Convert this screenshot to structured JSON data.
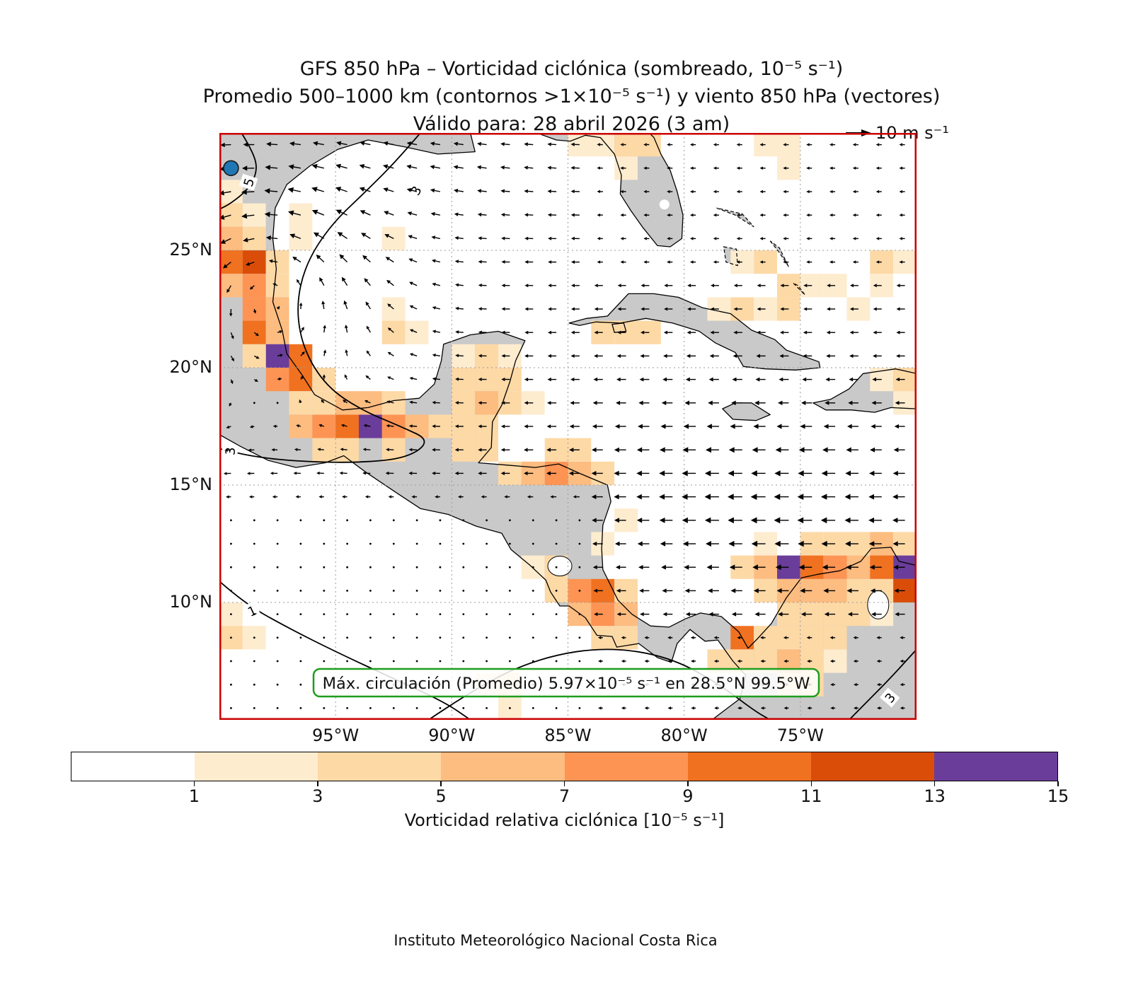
{
  "footer": "Instituto Meteorológico Nacional Costa Rica",
  "chart_data": {
    "type": "heatmap",
    "title": "GFS 850 hPa – Vorticidad ciclónica (sombreado, 10⁻⁵ s⁻¹)",
    "subtitle": "Promedio 500–1000 km (contornos >1×10⁻⁵ s⁻¹) y viento 850 hPa (vectores)",
    "valid_line": "Válido para: 28 abril 2026 (3 am)",
    "reference_vector_label": "10 m s⁻¹",
    "annotation": "Máx. circulación (Promedio) 5.97×10⁻⁵ s⁻¹ en 28.5°N 99.5°W",
    "max_circulation": {
      "value": 5.97,
      "units": "10⁻⁵ s⁻¹",
      "lat": 28.5,
      "lon": -99.5
    },
    "map_extent": {
      "lon_min": -100,
      "lon_max": -70,
      "lat_min": 5,
      "lat_max": 30
    },
    "x_ticks": [
      {
        "label": "95°W",
        "lon": -95
      },
      {
        "label": "90°W",
        "lon": -90
      },
      {
        "label": "85°W",
        "lon": -85
      },
      {
        "label": "80°W",
        "lon": -80
      },
      {
        "label": "75°W",
        "lon": -75
      }
    ],
    "y_ticks": [
      {
        "label": "25°N",
        "lat": 25
      },
      {
        "label": "20°N",
        "lat": 20
      },
      {
        "label": "15°N",
        "lat": 15
      },
      {
        "label": "10°N",
        "lat": 10
      }
    ],
    "colorbar": {
      "label": "Vorticidad relativa ciclónica [10⁻⁵ s⁻¹]",
      "tick_labels": [
        "1",
        "3",
        "5",
        "7",
        "9",
        "11",
        "13",
        "15"
      ],
      "boundaries": [
        -1,
        1,
        3,
        5,
        7,
        9,
        11,
        13,
        15
      ],
      "colors": [
        "#ffffff",
        "#feeccf",
        "#fdd9a6",
        "#fdbc80",
        "#fd9454",
        "#f07120",
        "#d94d09",
        "#6a3d9a"
      ]
    },
    "style": {
      "land_color": "#c9c9c9",
      "coast_color": "#000000",
      "border_color": "#cc0000",
      "annotation_border_color": "#1e9e1e",
      "marker_color": "#1f77b4",
      "grid_color": "#9a9a9a"
    },
    "contour_labels": [
      {
        "text": "5",
        "lon": -98.75,
        "lat": 27.9,
        "rot": -72
      },
      {
        "text": "3",
        "lon": -91.55,
        "lat": 27.55,
        "rot": -60
      },
      {
        "text": "3",
        "lon": -99.55,
        "lat": 16.45,
        "rot": -85
      },
      {
        "text": "1",
        "lon": -98.6,
        "lat": 9.65,
        "rot": -25
      },
      {
        "text": "3",
        "lon": -71.15,
        "lat": 5.95,
        "rot": -50
      }
    ],
    "vorticity_cells": [
      [
        -100,
        27,
        2
      ],
      [
        -100,
        26,
        3
      ],
      [
        -99,
        26,
        2
      ],
      [
        -97,
        26,
        2
      ],
      [
        -100,
        25,
        6
      ],
      [
        -99,
        25,
        4
      ],
      [
        -97,
        25,
        2
      ],
      [
        -100,
        24,
        9
      ],
      [
        -99,
        24,
        11
      ],
      [
        -98,
        24,
        3
      ],
      [
        -100,
        23,
        5
      ],
      [
        -99,
        23,
        7
      ],
      [
        -98,
        23,
        4
      ],
      [
        -99,
        22,
        8
      ],
      [
        -98,
        22,
        5
      ],
      [
        -99,
        21,
        9
      ],
      [
        -98,
        21,
        6
      ],
      [
        -98,
        20,
        14
      ],
      [
        -97,
        20,
        9
      ],
      [
        -99,
        20,
        3
      ],
      [
        -98,
        19,
        8
      ],
      [
        -97,
        19,
        10
      ],
      [
        -96,
        19,
        4
      ],
      [
        -97,
        18,
        4
      ],
      [
        -97,
        17,
        5
      ],
      [
        -96,
        17,
        8
      ],
      [
        -95,
        17,
        10
      ],
      [
        -94,
        17,
        14
      ],
      [
        -93,
        17,
        8
      ],
      [
        -92,
        17,
        6
      ],
      [
        -91,
        17,
        4
      ],
      [
        -96,
        18,
        3
      ],
      [
        -95,
        18,
        6
      ],
      [
        -94,
        18,
        5
      ],
      [
        -93,
        18,
        3
      ],
      [
        -96,
        16,
        3
      ],
      [
        -95,
        16,
        4
      ],
      [
        -93,
        16,
        3
      ],
      [
        -93,
        25,
        2
      ],
      [
        -93,
        22,
        2
      ],
      [
        -93,
        21,
        3
      ],
      [
        -92,
        21,
        2
      ],
      [
        -90,
        20,
        2
      ],
      [
        -89,
        20,
        3
      ],
      [
        -88,
        20,
        2
      ],
      [
        -90,
        19,
        3
      ],
      [
        -89,
        19,
        4
      ],
      [
        -88,
        19,
        3
      ],
      [
        -90,
        18,
        4
      ],
      [
        -89,
        18,
        5
      ],
      [
        -88,
        18,
        4
      ],
      [
        -87,
        18,
        2
      ],
      [
        -90,
        17,
        4
      ],
      [
        -89,
        17,
        3
      ],
      [
        -90,
        16,
        4
      ],
      [
        -89,
        16,
        3
      ],
      [
        -88,
        15,
        4
      ],
      [
        -87,
        15,
        5
      ],
      [
        -86,
        15,
        7
      ],
      [
        -85,
        15,
        5
      ],
      [
        -84,
        15,
        3
      ],
      [
        -86,
        16,
        3
      ],
      [
        -85,
        16,
        3
      ],
      [
        -84,
        21,
        3
      ],
      [
        -83,
        21,
        3
      ],
      [
        -82,
        21,
        3
      ],
      [
        -79,
        22,
        2
      ],
      [
        -78,
        22,
        3
      ],
      [
        -77,
        22,
        2
      ],
      [
        -76,
        22,
        3
      ],
      [
        -76,
        23,
        3
      ],
      [
        -75,
        23,
        2
      ],
      [
        -74,
        23,
        2
      ],
      [
        -73,
        22,
        2
      ],
      [
        -78,
        24,
        2
      ],
      [
        -77,
        24,
        3
      ],
      [
        -72,
        24,
        3
      ],
      [
        -71,
        24,
        2
      ],
      [
        -72,
        23,
        2
      ],
      [
        -85,
        29,
        2
      ],
      [
        -84,
        29,
        2
      ],
      [
        -83,
        29,
        3
      ],
      [
        -82,
        29,
        3
      ],
      [
        -83,
        28,
        2
      ],
      [
        -77,
        29,
        2
      ],
      [
        -76,
        29,
        2
      ],
      [
        -76,
        28,
        2
      ],
      [
        -72,
        19,
        2
      ],
      [
        -71,
        19,
        3
      ],
      [
        -71,
        18,
        2
      ],
      [
        -87,
        11,
        2
      ],
      [
        -86,
        11,
        3
      ],
      [
        -86,
        10,
        4
      ],
      [
        -85,
        10,
        8
      ],
      [
        -84,
        10,
        10
      ],
      [
        -83,
        10,
        4
      ],
      [
        -85,
        9,
        5
      ],
      [
        -84,
        9,
        7
      ],
      [
        -83,
        9,
        5
      ],
      [
        -84,
        8,
        4
      ],
      [
        -83,
        8,
        3
      ],
      [
        -84,
        12,
        2
      ],
      [
        -83,
        13,
        2
      ],
      [
        -78,
        8,
        9
      ],
      [
        -79,
        7,
        3
      ],
      [
        -78,
        7,
        4
      ],
      [
        -77,
        12,
        2
      ],
      [
        -75,
        12,
        3
      ],
      [
        -74,
        12,
        4
      ],
      [
        -73,
        12,
        3
      ],
      [
        -72,
        12,
        5
      ],
      [
        -71,
        12,
        3
      ],
      [
        -78,
        11,
        3
      ],
      [
        -77,
        11,
        5
      ],
      [
        -76,
        11,
        14
      ],
      [
        -75,
        11,
        9
      ],
      [
        -74,
        11,
        7
      ],
      [
        -73,
        11,
        6
      ],
      [
        -72,
        11,
        9
      ],
      [
        -71,
        11,
        14
      ],
      [
        -77,
        10,
        3
      ],
      [
        -76,
        10,
        5
      ],
      [
        -75,
        10,
        6
      ],
      [
        -74,
        10,
        5
      ],
      [
        -73,
        10,
        4
      ],
      [
        -72,
        10,
        4
      ],
      [
        -71,
        10,
        11
      ],
      [
        -76,
        9,
        4
      ],
      [
        -75,
        9,
        4
      ],
      [
        -74,
        9,
        3
      ],
      [
        -73,
        9,
        3
      ],
      [
        -72,
        9,
        2
      ],
      [
        -77,
        8,
        4
      ],
      [
        -76,
        8,
        4
      ],
      [
        -75,
        8,
        3
      ],
      [
        -74,
        8,
        3
      ],
      [
        -77,
        7,
        4
      ],
      [
        -76,
        7,
        5
      ],
      [
        -75,
        7,
        4
      ],
      [
        -74,
        7,
        2
      ],
      [
        -76,
        6,
        3
      ],
      [
        -75,
        6,
        3
      ],
      [
        -100,
        9,
        2
      ],
      [
        -100,
        8,
        3
      ],
      [
        -99,
        8,
        2
      ],
      [
        -89,
        6,
        2
      ],
      [
        -88,
        6,
        3
      ],
      [
        -88,
        5,
        2
      ]
    ],
    "wind_summary": "Easterly trade winds across the Caribbean (strongest, ~10 m s⁻¹, east of 80°W), cyclonic turning with southerly flow over the western Gulf of Mexico, weak winds over the eastern Pacific south of about 14°N"
  }
}
